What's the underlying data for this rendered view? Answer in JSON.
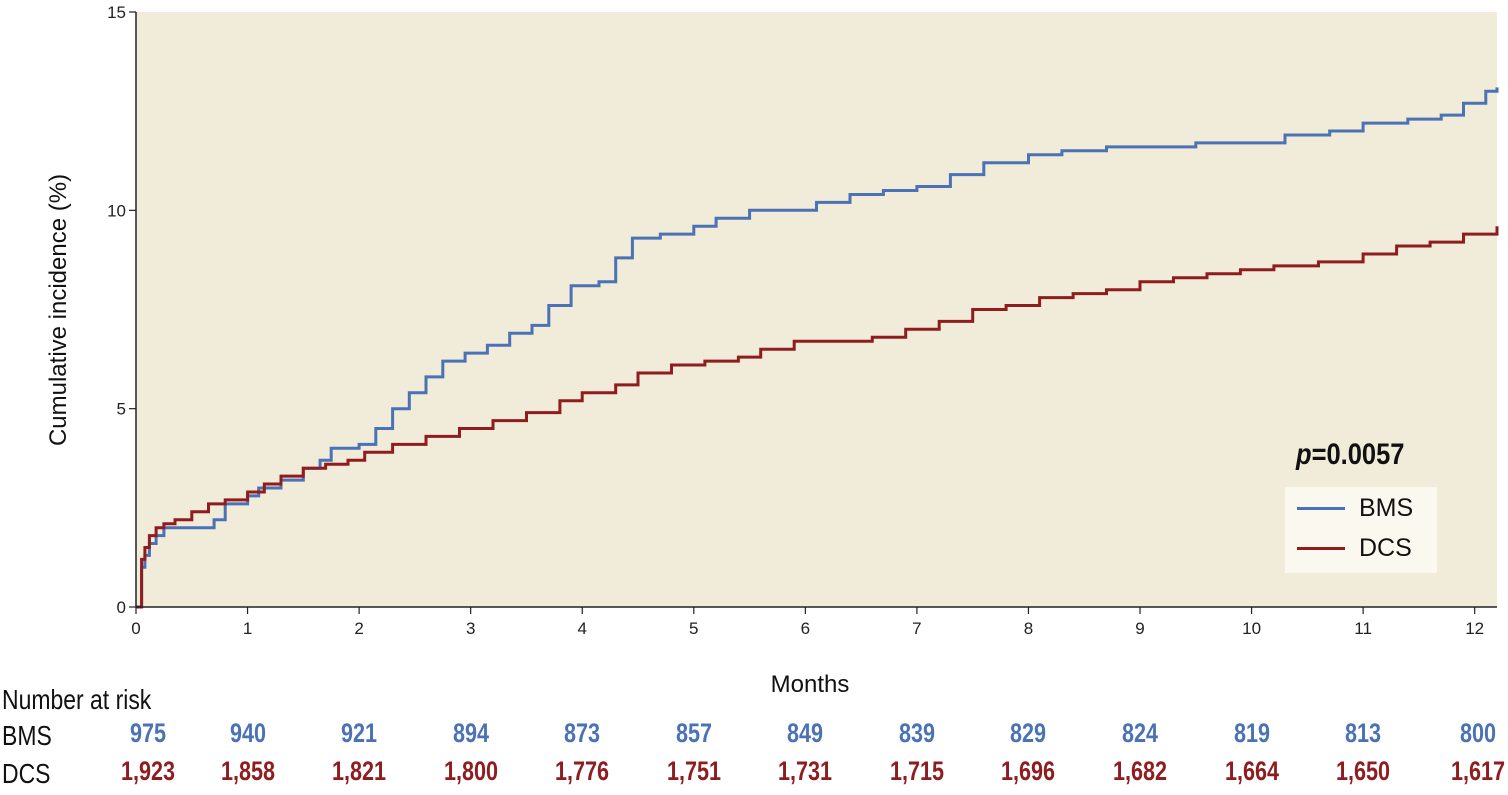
{
  "chart_data": {
    "type": "line",
    "step": true,
    "xlabel": "Months",
    "ylabel": "Cumulative incidence (%)",
    "xlim": [
      0,
      12.2
    ],
    "ylim": [
      0,
      15
    ],
    "xticks": [
      0,
      1,
      2,
      3,
      4,
      5,
      6,
      7,
      8,
      9,
      10,
      11,
      12
    ],
    "yticks": [
      0,
      5,
      10,
      15
    ],
    "grid": false,
    "plot_background": "#f1ebd9",
    "annotation": {
      "p_label": "p",
      "p_value": "=0.0057"
    },
    "legend_position": "right",
    "series": [
      {
        "name": "BMS",
        "color": "#4a72b5",
        "x": [
          0,
          0.05,
          0.08,
          0.12,
          0.18,
          0.25,
          0.35,
          0.6,
          0.7,
          0.8,
          1.0,
          1.1,
          1.3,
          1.5,
          1.65,
          1.75,
          2.0,
          2.15,
          2.3,
          2.45,
          2.6,
          2.75,
          2.95,
          3.15,
          3.35,
          3.55,
          3.7,
          3.9,
          4.15,
          4.3,
          4.45,
          4.7,
          5.0,
          5.2,
          5.5,
          5.8,
          6.1,
          6.4,
          6.7,
          7.0,
          7.3,
          7.6,
          8.0,
          8.3,
          8.7,
          9.0,
          9.5,
          9.9,
          10.3,
          10.7,
          11.0,
          11.4,
          11.7,
          11.9,
          12.1,
          12.2
        ],
        "y": [
          0,
          1.0,
          1.3,
          1.6,
          1.8,
          2.0,
          2.0,
          2.0,
          2.2,
          2.6,
          2.8,
          3.0,
          3.2,
          3.5,
          3.7,
          4.0,
          4.1,
          4.5,
          5.0,
          5.4,
          5.8,
          6.2,
          6.4,
          6.6,
          6.9,
          7.1,
          7.6,
          8.1,
          8.2,
          8.8,
          9.3,
          9.4,
          9.6,
          9.8,
          10.0,
          10.0,
          10.2,
          10.4,
          10.5,
          10.6,
          10.9,
          11.2,
          11.4,
          11.5,
          11.6,
          11.6,
          11.7,
          11.7,
          11.9,
          12.0,
          12.2,
          12.3,
          12.4,
          12.7,
          13.0,
          13.1
        ]
      },
      {
        "name": "DCS",
        "color": "#8f1d1f",
        "x": [
          0,
          0.05,
          0.08,
          0.12,
          0.18,
          0.25,
          0.35,
          0.5,
          0.65,
          0.8,
          1.0,
          1.15,
          1.3,
          1.5,
          1.7,
          1.9,
          2.05,
          2.3,
          2.6,
          2.9,
          3.2,
          3.5,
          3.8,
          4.0,
          4.3,
          4.5,
          4.8,
          5.1,
          5.4,
          5.6,
          5.9,
          6.3,
          6.6,
          6.9,
          7.2,
          7.5,
          7.8,
          8.1,
          8.4,
          8.7,
          9.0,
          9.3,
          9.6,
          9.9,
          10.2,
          10.6,
          11.0,
          11.3,
          11.6,
          11.9,
          12.2
        ],
        "y": [
          0,
          1.2,
          1.5,
          1.8,
          2.0,
          2.1,
          2.2,
          2.4,
          2.6,
          2.7,
          2.9,
          3.1,
          3.3,
          3.5,
          3.6,
          3.7,
          3.9,
          4.1,
          4.3,
          4.5,
          4.7,
          4.9,
          5.2,
          5.4,
          5.6,
          5.9,
          6.1,
          6.2,
          6.3,
          6.5,
          6.7,
          6.7,
          6.8,
          7.0,
          7.2,
          7.5,
          7.6,
          7.8,
          7.9,
          8.0,
          8.2,
          8.3,
          8.4,
          8.5,
          8.6,
          8.7,
          8.9,
          9.1,
          9.2,
          9.4,
          9.6
        ]
      }
    ],
    "number_at_risk": {
      "title": "Number at risk",
      "rows": [
        {
          "label": "BMS",
          "color": "#4a72b5",
          "values": [
            "975",
            "940",
            "921",
            "894",
            "873",
            "857",
            "849",
            "839",
            "829",
            "824",
            "819",
            "813",
            "800"
          ]
        },
        {
          "label": "DCS",
          "color": "#8f1d1f",
          "values": [
            "1,923",
            "1,858",
            "1,821",
            "1,800",
            "1,776",
            "1,751",
            "1,731",
            "1,715",
            "1,696",
            "1,682",
            "1,664",
            "1,650",
            "1,617"
          ]
        }
      ]
    }
  }
}
